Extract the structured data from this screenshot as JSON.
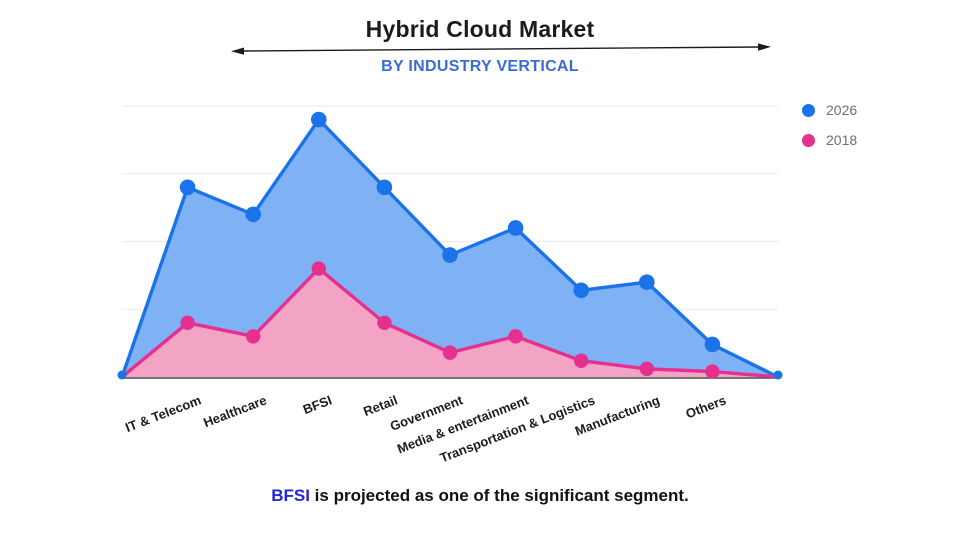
{
  "header": {
    "title": "Hybrid Cloud Market",
    "subtitle": "BY INDUSTRY VERTICAL"
  },
  "legend": [
    {
      "label": "2026",
      "color": "#1a73e8"
    },
    {
      "label": "2018",
      "color": "#e6308f"
    }
  ],
  "chart_data": {
    "type": "area",
    "title": "Hybrid Cloud Market",
    "subtitle": "BY INDUSTRY VERTICAL",
    "xlabel": "",
    "ylabel": "",
    "categories": [
      "IT & Telecom",
      "Healthcare",
      "BFSI",
      "Retail",
      "Government",
      "Media & entertainment",
      "Transportation & Logistics",
      "Manufacturing",
      "Others"
    ],
    "series": [
      {
        "name": "2026",
        "line_color": "#1a73e8",
        "fill_color": "#7fb1f5",
        "values": [
          70,
          60,
          95,
          70,
          45,
          55,
          32,
          35,
          12
        ]
      },
      {
        "name": "2018",
        "line_color": "#e6308f",
        "fill_color": "#f3a4c5",
        "values": [
          20,
          15,
          40,
          20,
          9,
          15,
          6,
          3,
          2
        ]
      }
    ],
    "ylim": [
      0,
      100
    ],
    "grid_step": 25,
    "grid": true,
    "edge_anchors_zero": true,
    "legend_position": "right"
  },
  "caption": {
    "highlight": "BFSI",
    "highlight_color": "#2323dd",
    "text": " is projected as one of the significant segment."
  }
}
